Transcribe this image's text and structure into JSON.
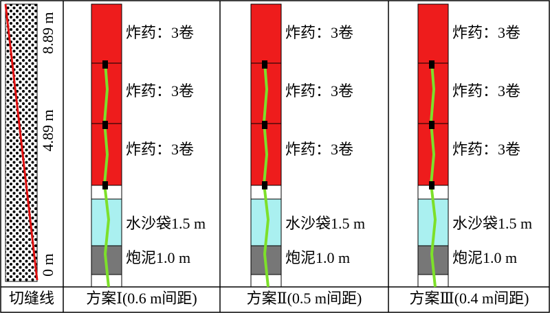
{
  "slit_column": {
    "label": "切缝线",
    "marks": [
      "8.89 m",
      "4.89 m",
      "0 m"
    ]
  },
  "schemes": [
    {
      "label": "方案Ⅰ(0.6 m间距)",
      "charges": [
        "炸药：3卷",
        "炸药：3卷",
        "炸药：3卷"
      ],
      "sand_bag": "水沙袋1.5 m",
      "stemming": "炮泥1.0 m"
    },
    {
      "label": "方案Ⅱ(0.5 m间距)",
      "charges": [
        "炸药：3卷",
        "炸药：3卷",
        "炸药：3卷"
      ],
      "sand_bag": "水沙袋1.5 m",
      "stemming": "炮泥1.0 m"
    },
    {
      "label": "方案Ⅲ(0.4 m间距)",
      "charges": [
        "炸药：3卷",
        "炸药：3卷",
        "炸药：3卷"
      ],
      "sand_bag": "水沙袋1.5 m",
      "stemming": "炮泥1.0 m"
    }
  ]
}
